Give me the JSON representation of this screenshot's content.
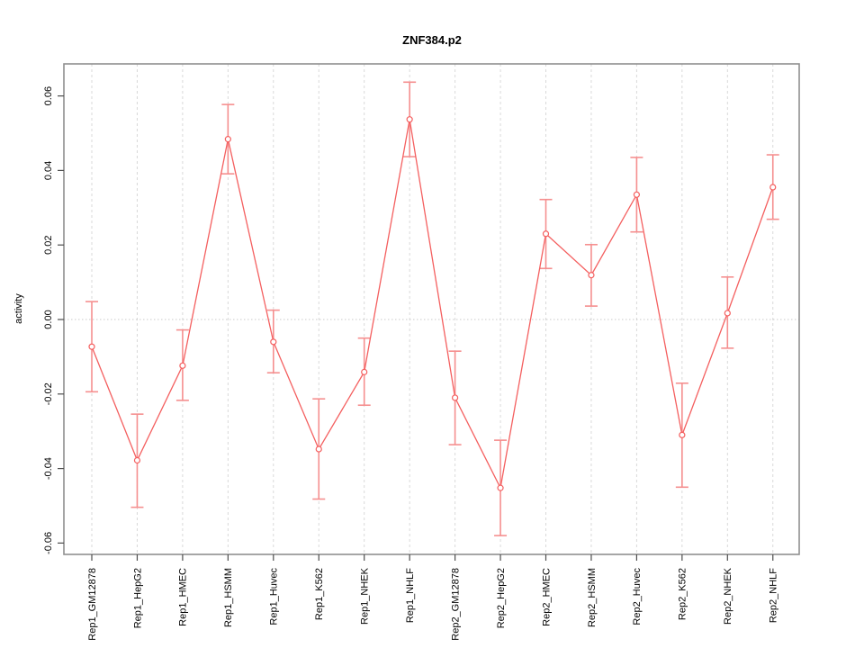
{
  "chart_data": {
    "type": "line",
    "title": "ZNF384.p2",
    "xlabel": "",
    "ylabel": "activity",
    "categories": [
      "Rep1_GM12878",
      "Rep1_HepG2",
      "Rep1_HMEC",
      "Rep1_HSMM",
      "Rep1_Huvec",
      "Rep1_K562",
      "Rep1_NHEK",
      "Rep1_NHLF",
      "Rep2_GM12878",
      "Rep2_HepG2",
      "Rep2_HMEC",
      "Rep2_HSMM",
      "Rep2_Huvec",
      "Rep2_K562",
      "Rep2_NHEK",
      "Rep2_NHLF"
    ],
    "series": [
      {
        "name": "activity",
        "values": [
          -0.0073,
          -0.0378,
          -0.0124,
          0.0484,
          -0.006,
          -0.0348,
          -0.0141,
          0.0537,
          -0.021,
          -0.0452,
          0.023,
          0.0119,
          0.0335,
          -0.031,
          0.0017,
          0.0355
        ],
        "err_high": [
          0.0048,
          -0.0254,
          -0.0028,
          0.0577,
          0.0025,
          -0.0213,
          -0.005,
          0.0637,
          -0.0085,
          -0.0324,
          0.0322,
          0.0201,
          0.0435,
          -0.0171,
          0.0114,
          0.0442
        ],
        "err_low": [
          -0.0194,
          -0.0504,
          -0.0217,
          0.0391,
          -0.0143,
          -0.0482,
          -0.023,
          0.0437,
          -0.0336,
          -0.058,
          0.0137,
          0.0036,
          0.0235,
          -0.045,
          -0.0077,
          0.0269
        ]
      }
    ],
    "ylim": [
      -0.063,
      0.069
    ],
    "yticks": [
      -0.06,
      -0.04,
      -0.02,
      0.0,
      0.02,
      0.04,
      0.06
    ],
    "ytick_labels": [
      "-0.06",
      "-0.04",
      "-0.02",
      "0.00",
      "0.02",
      "0.04",
      "0.06"
    ],
    "grid": "vertical dashed gridline at each category; dotted horizontal line at y=0",
    "legend": "none",
    "marker": "open-circle",
    "colors": {
      "line": "#f45f5f",
      "error_bar": "#f58f8f",
      "grid": "#d9d9d9",
      "zero_line": "#c9c9c9",
      "border": "#8f8f8f",
      "tick": "#4d4d4d",
      "text": "#000000",
      "background": "#ffffff"
    }
  }
}
